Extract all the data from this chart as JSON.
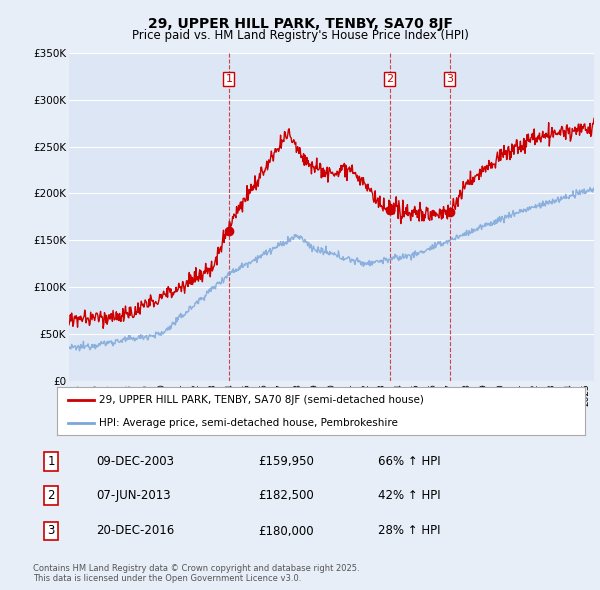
{
  "title": "29, UPPER HILL PARK, TENBY, SA70 8JF",
  "subtitle": "Price paid vs. HM Land Registry's House Price Index (HPI)",
  "ylim": [
    0,
    350000
  ],
  "yticks": [
    0,
    50000,
    100000,
    150000,
    200000,
    250000,
    300000,
    350000
  ],
  "ytick_labels": [
    "£0",
    "£50K",
    "£100K",
    "£150K",
    "£200K",
    "£250K",
    "£300K",
    "£350K"
  ],
  "xlim_start": 1994.5,
  "xlim_end": 2025.5,
  "background_color": "#e8eef7",
  "plot_bg_color": "#dce6f5",
  "grid_color": "#ffffff",
  "sale_dates": [
    2003.94,
    2013.44,
    2016.97
  ],
  "sale_prices": [
    159950,
    182500,
    180000
  ],
  "sale_labels": [
    "1",
    "2",
    "3"
  ],
  "legend_line1": "29, UPPER HILL PARK, TENBY, SA70 8JF (semi-detached house)",
  "legend_line2": "HPI: Average price, semi-detached house, Pembrokeshire",
  "table_data": [
    [
      "1",
      "09-DEC-2003",
      "£159,950",
      "66% ↑ HPI"
    ],
    [
      "2",
      "07-JUN-2013",
      "£182,500",
      "42% ↑ HPI"
    ],
    [
      "3",
      "20-DEC-2016",
      "£180,000",
      "28% ↑ HPI"
    ]
  ],
  "footer": "Contains HM Land Registry data © Crown copyright and database right 2025.\nThis data is licensed under the Open Government Licence v3.0.",
  "red_color": "#cc0000",
  "blue_color": "#7da7d9"
}
